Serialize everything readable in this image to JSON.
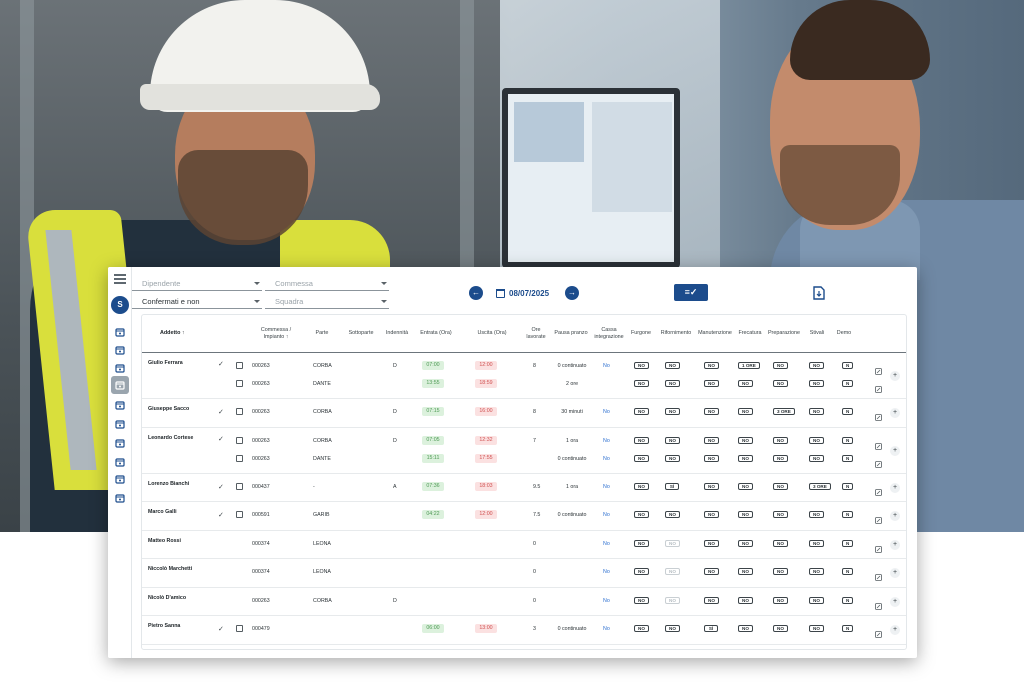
{
  "app": {
    "user_initial": "S",
    "accent": "#1c4c8c",
    "filters": {
      "dipendente_placeholder": "Dipendente",
      "commessa_placeholder": "Commessa",
      "stato_value": "Confermati e non",
      "squadra_placeholder": "Squadra"
    },
    "date": "08/07/2025",
    "sidebar_icons": [
      "calendar-icon",
      "calendar-alt-icon",
      "calendar-check-icon",
      "clock-icon",
      "history-icon",
      "people-icon",
      "settings-calendar-icon",
      "mountain-icon",
      "briefcase-icon",
      "server-icon"
    ],
    "columns": {
      "addetto": "Addetto",
      "commessa": "Commessa / Impianto",
      "parte": "Parte",
      "sottoparte": "Sottoparte",
      "indennita": "Indennità",
      "entrata": "Entrata (Ora)",
      "uscita": "Uscita (Ora)",
      "ore": "Ore lavorate",
      "pausa": "Pausa pranzo",
      "cassa": "Cassa integrazione",
      "furgone": "Furgone",
      "rifornimento": "Rifornimento",
      "manutenzione": "Manutenzione",
      "frecatura": "Frecatura",
      "preparazione": "Preparazione",
      "stivali": "Stivali",
      "demo": "Demo"
    },
    "rows": [
      {
        "name": "Giulio Ferrara",
        "confirmed": true,
        "lines": [
          {
            "commessa": "000263",
            "parte": "CORBA",
            "ind": "D",
            "in": "07:00",
            "out": "12:00",
            "ore": "8",
            "pausa": "0 continuato",
            "cassa": "No",
            "flags": [
              "NO",
              "NO",
              "NO",
              "1 ORE",
              "NO",
              "NO",
              "N"
            ]
          },
          {
            "commessa": "000263",
            "parte": "DANTE",
            "ind": "",
            "in": "13:55",
            "out": "18:59",
            "ore": "",
            "pausa": "2 ore",
            "cassa": "",
            "flags": [
              "NO",
              "NO",
              "NO",
              "NO",
              "NO",
              "NO",
              "N"
            ]
          }
        ]
      },
      {
        "name": "Giuseppe Sacco",
        "confirmed": true,
        "lines": [
          {
            "commessa": "000263",
            "parte": "CORBA",
            "ind": "D",
            "in": "07:15",
            "out": "16:00",
            "ore": "8",
            "pausa": "30 minuti",
            "cassa": "No",
            "flags": [
              "NO",
              "NO",
              "NO",
              "NO",
              "3 ORE",
              "NO",
              "N"
            ]
          }
        ]
      },
      {
        "name": "Leonardo Cortese",
        "confirmed": true,
        "lines": [
          {
            "commessa": "000263",
            "parte": "CORBA",
            "ind": "D",
            "in": "07:05",
            "out": "12:32",
            "ore": "7",
            "pausa": "1 ora",
            "cassa": "No",
            "flags": [
              "NO",
              "NO",
              "NO",
              "NO",
              "NO",
              "NO",
              "N"
            ]
          },
          {
            "commessa": "000263",
            "parte": "DANTE",
            "ind": "",
            "in": "15:11",
            "out": "17:55",
            "ore": "",
            "pausa": "0 continuato",
            "cassa": "No",
            "flags": [
              "NO",
              "NO",
              "NO",
              "NO",
              "NO",
              "NO",
              "N"
            ]
          }
        ]
      },
      {
        "name": "Lorenzo Bianchi",
        "confirmed": true,
        "lines": [
          {
            "commessa": "000437",
            "parte": "-",
            "ind": "A",
            "in": "07:36",
            "out": "18:03",
            "ore": "9.5",
            "pausa": "1 ora",
            "cassa": "No",
            "flags": [
              "NO",
              "SÌ",
              "NO",
              "NO",
              "NO",
              "3 ORE",
              "N"
            ]
          }
        ]
      },
      {
        "name": "Marco Galli",
        "confirmed": true,
        "lines": [
          {
            "commessa": "000591",
            "parte": "GARIB",
            "ind": "",
            "in": "04:22",
            "out": "12:00",
            "ore": "7.5",
            "pausa": "0 continuato",
            "cassa": "No",
            "flags": [
              "NO",
              "NO",
              "NO",
              "NO",
              "NO",
              "NO",
              "N"
            ]
          }
        ]
      },
      {
        "name": "Matteo Rossi",
        "confirmed": false,
        "lines": [
          {
            "commessa": "000374",
            "parte": "LEONA",
            "ind": "",
            "in": "",
            "out": "",
            "ore": "0",
            "pausa": "",
            "cassa": "No",
            "flags": [
              "NO",
              "NO*",
              "NO",
              "NO",
              "NO",
              "NO",
              "N"
            ]
          }
        ]
      },
      {
        "name": "Niccolò Marchetti",
        "confirmed": false,
        "lines": [
          {
            "commessa": "000374",
            "parte": "LEONA",
            "ind": "",
            "in": "",
            "out": "",
            "ore": "0",
            "pausa": "",
            "cassa": "No",
            "flags": [
              "NO",
              "NO*",
              "NO",
              "NO",
              "NO",
              "NO",
              "N"
            ]
          }
        ]
      },
      {
        "name": "Nicolò D'amico",
        "confirmed": false,
        "lines": [
          {
            "commessa": "000263",
            "parte": "CORBA",
            "ind": "D",
            "in": "",
            "out": "",
            "ore": "0",
            "pausa": "",
            "cassa": "No",
            "flags": [
              "NO",
              "NO*",
              "NO",
              "NO",
              "NO",
              "NO",
              "N"
            ]
          }
        ]
      },
      {
        "name": "Pietro Sanna",
        "confirmed": true,
        "lines": [
          {
            "commessa": "000479",
            "parte": "",
            "ind": "",
            "in": "06:00",
            "out": "13:00",
            "ore": "3",
            "pausa": "0 continuato",
            "cassa": "No",
            "flags": [
              "NO",
              "NO",
              "SÌ",
              "NO",
              "NO",
              "NO",
              "N"
            ]
          }
        ]
      }
    ]
  }
}
